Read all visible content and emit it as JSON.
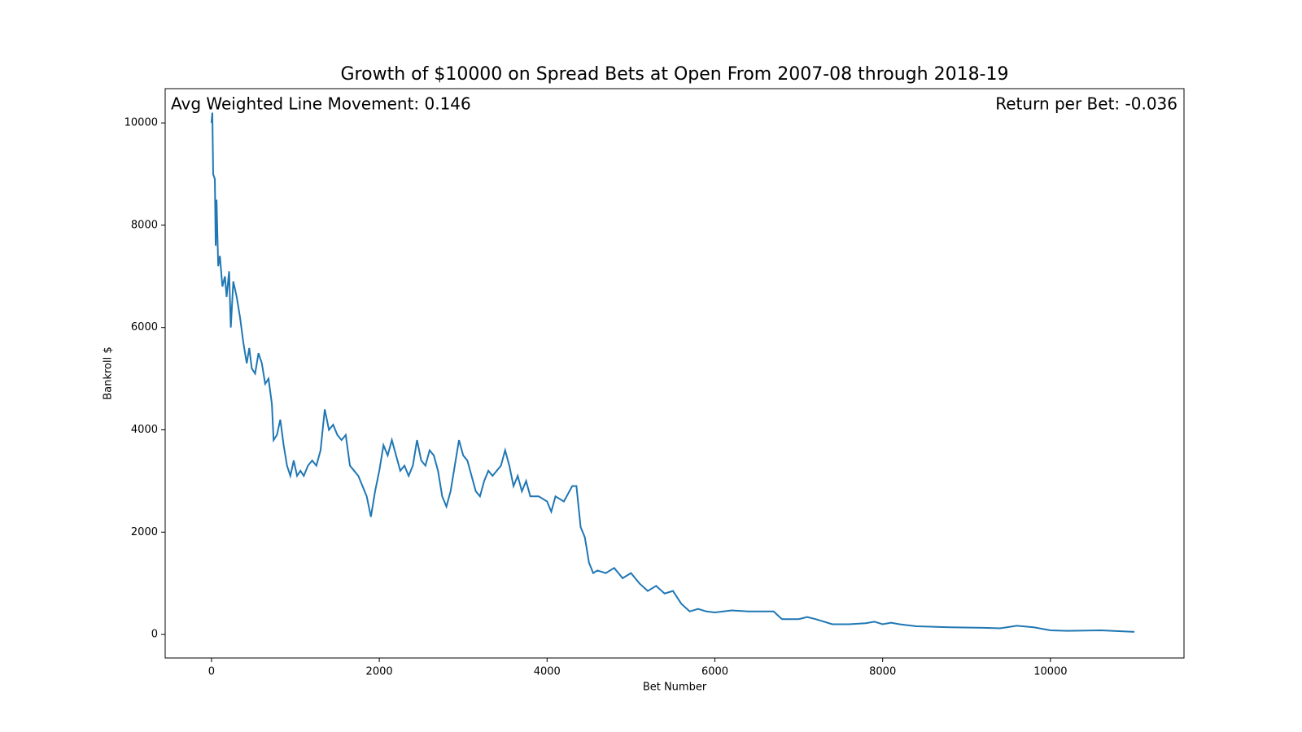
{
  "chart_data": {
    "type": "line",
    "title": "Growth of $10000 on Spread Bets at Open From 2007-08 through 2018-19",
    "xlabel": "Bet Number",
    "ylabel": "Bankroll $",
    "annotations": [
      "Avg Weighted Line Movement: 0.146",
      "Return per Bet: -0.036"
    ],
    "xlim": [
      -552,
      11592
    ],
    "ylim": [
      -460,
      10670
    ],
    "xticks": [
      0,
      2000,
      4000,
      6000,
      8000,
      10000
    ],
    "yticks": [
      0,
      2000,
      4000,
      6000,
      8000,
      10000
    ],
    "x": [
      0,
      10,
      20,
      40,
      50,
      60,
      80,
      100,
      130,
      160,
      180,
      210,
      230,
      260,
      300,
      340,
      380,
      420,
      450,
      480,
      520,
      560,
      600,
      640,
      680,
      720,
      740,
      780,
      820,
      860,
      900,
      940,
      980,
      1020,
      1060,
      1100,
      1150,
      1200,
      1250,
      1300,
      1350,
      1400,
      1450,
      1500,
      1550,
      1600,
      1650,
      1700,
      1750,
      1800,
      1850,
      1900,
      1950,
      2000,
      2050,
      2100,
      2150,
      2200,
      2250,
      2300,
      2350,
      2400,
      2450,
      2500,
      2550,
      2600,
      2650,
      2700,
      2750,
      2800,
      2850,
      2900,
      2950,
      3000,
      3050,
      3100,
      3150,
      3200,
      3250,
      3300,
      3350,
      3400,
      3450,
      3500,
      3550,
      3600,
      3650,
      3700,
      3750,
      3800,
      3900,
      4000,
      4050,
      4100,
      4200,
      4300,
      4350,
      4400,
      4450,
      4500,
      4550,
      4600,
      4700,
      4800,
      4900,
      5000,
      5100,
      5200,
      5300,
      5400,
      5500,
      5600,
      5700,
      5800,
      5900,
      6000,
      6200,
      6400,
      6600,
      6700,
      6800,
      7000,
      7100,
      7200,
      7400,
      7600,
      7800,
      7900,
      8000,
      8100,
      8200,
      8400,
      8800,
      9200,
      9400,
      9600,
      9800,
      10000,
      10200,
      10600,
      11000
    ],
    "series": [
      {
        "name": "Bankroll",
        "color": "#1f77b4",
        "values": [
          10000,
          10200,
          9000,
          8900,
          7600,
          8500,
          7200,
          7400,
          6800,
          7000,
          6600,
          7100,
          6000,
          6900,
          6600,
          6200,
          5700,
          5300,
          5600,
          5200,
          5100,
          5500,
          5300,
          4900,
          5000,
          4500,
          3800,
          3900,
          4200,
          3700,
          3300,
          3100,
          3400,
          3100,
          3200,
          3100,
          3300,
          3400,
          3300,
          3600,
          4400,
          4000,
          4100,
          3900,
          3800,
          3900,
          3300,
          3200,
          3100,
          2900,
          2700,
          2300,
          2800,
          3200,
          3700,
          3500,
          3800,
          3500,
          3200,
          3300,
          3100,
          3300,
          3800,
          3400,
          3300,
          3600,
          3500,
          3200,
          2700,
          2500,
          2800,
          3300,
          3800,
          3500,
          3400,
          3100,
          2800,
          2700,
          3000,
          3200,
          3100,
          3200,
          3300,
          3600,
          3300,
          2900,
          3100,
          2800,
          3000,
          2700,
          2700,
          2600,
          2400,
          2700,
          2600,
          2900,
          2900,
          2100,
          1900,
          1400,
          1200,
          1250,
          1200,
          1300,
          1100,
          1200,
          1000,
          850,
          950,
          800,
          850,
          600,
          450,
          500,
          450,
          430,
          470,
          450,
          450,
          450,
          300,
          300,
          340,
          300,
          200,
          200,
          220,
          250,
          200,
          230,
          200,
          160,
          140,
          130,
          120,
          170,
          140,
          80,
          70,
          80,
          50
        ]
      }
    ]
  }
}
